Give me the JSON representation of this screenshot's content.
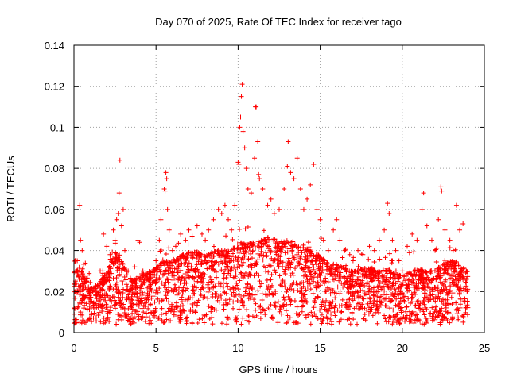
{
  "chart_data": {
    "type": "scatter",
    "title": "Day 070 of 2025, Rate Of TEC Index for receiver tago",
    "xlabel": "GPS time / hours",
    "ylabel": "ROTI / TECUs",
    "xlim": [
      0,
      25
    ],
    "ylim": [
      0,
      0.14
    ],
    "x_ticks": [
      "0",
      "5",
      "10",
      "15",
      "20",
      "25"
    ],
    "y_ticks": [
      "0",
      "0.02",
      "0.04",
      "0.06",
      "0.08",
      "0.1",
      "0.12",
      "0.14"
    ],
    "grid": true,
    "marker": "+",
    "color": "#ff0000",
    "series": [
      {
        "points": [
          [
            0.05,
            0.012
          ],
          [
            0.1,
            0.02
          ],
          [
            0.15,
            0.03
          ],
          [
            0.2,
            0.035
          ],
          [
            0.25,
            0.028
          ],
          [
            0.35,
            0.062
          ],
          [
            0.4,
            0.045
          ],
          [
            0.5,
            0.04
          ],
          [
            0.6,
            0.025
          ],
          [
            0.7,
            0.022
          ],
          [
            0.8,
            0.018
          ],
          [
            1.0,
            0.015
          ],
          [
            1.2,
            0.012
          ],
          [
            1.4,
            0.02
          ],
          [
            1.6,
            0.03
          ],
          [
            1.8,
            0.048
          ],
          [
            2.0,
            0.042
          ],
          [
            2.2,
            0.038
          ],
          [
            2.4,
            0.05
          ],
          [
            2.5,
            0.045
          ],
          [
            2.6,
            0.055
          ],
          [
            2.7,
            0.058
          ],
          [
            2.75,
            0.068
          ],
          [
            2.8,
            0.084
          ],
          [
            2.9,
            0.052
          ],
          [
            3.0,
            0.06
          ],
          [
            3.1,
            0.04
          ],
          [
            3.3,
            0.03
          ],
          [
            3.5,
            0.025
          ],
          [
            3.7,
            0.032
          ],
          [
            3.9,
            0.045
          ],
          [
            4.0,
            0.044
          ],
          [
            4.2,
            0.03
          ],
          [
            4.4,
            0.028
          ],
          [
            4.6,
            0.026
          ],
          [
            4.8,
            0.03
          ],
          [
            5.0,
            0.035
          ],
          [
            5.2,
            0.045
          ],
          [
            5.3,
            0.055
          ],
          [
            5.5,
            0.07
          ],
          [
            5.55,
            0.069
          ],
          [
            5.6,
            0.078
          ],
          [
            5.65,
            0.075
          ],
          [
            5.7,
            0.06
          ],
          [
            5.8,
            0.05
          ],
          [
            6.0,
            0.04
          ],
          [
            6.2,
            0.042
          ],
          [
            6.5,
            0.048
          ],
          [
            6.8,
            0.045
          ],
          [
            7.0,
            0.05
          ],
          [
            7.2,
            0.047
          ],
          [
            7.5,
            0.052
          ],
          [
            7.8,
            0.048
          ],
          [
            8.0,
            0.045
          ],
          [
            8.2,
            0.05
          ],
          [
            8.5,
            0.055
          ],
          [
            8.8,
            0.06
          ],
          [
            9.0,
            0.058
          ],
          [
            9.2,
            0.062
          ],
          [
            9.4,
            0.055
          ],
          [
            9.6,
            0.05
          ],
          [
            9.8,
            0.062
          ],
          [
            10.0,
            0.083
          ],
          [
            10.05,
            0.082
          ],
          [
            10.1,
            0.1
          ],
          [
            10.15,
            0.105
          ],
          [
            10.2,
            0.115
          ],
          [
            10.25,
            0.121
          ],
          [
            10.3,
            0.098
          ],
          [
            10.4,
            0.09
          ],
          [
            10.5,
            0.08
          ],
          [
            10.6,
            0.07
          ],
          [
            10.8,
            0.068
          ],
          [
            11.0,
            0.085
          ],
          [
            11.05,
            0.11
          ],
          [
            11.1,
            0.11
          ],
          [
            11.2,
            0.093
          ],
          [
            11.25,
            0.077
          ],
          [
            11.3,
            0.075
          ],
          [
            11.5,
            0.07
          ],
          [
            11.8,
            0.062
          ],
          [
            12.0,
            0.065
          ],
          [
            12.2,
            0.058
          ],
          [
            12.5,
            0.06
          ],
          [
            12.8,
            0.07
          ],
          [
            13.0,
            0.081
          ],
          [
            13.05,
            0.093
          ],
          [
            13.2,
            0.078
          ],
          [
            13.4,
            0.075
          ],
          [
            13.6,
            0.085
          ],
          [
            13.8,
            0.07
          ],
          [
            14.0,
            0.06
          ],
          [
            14.2,
            0.065
          ],
          [
            14.4,
            0.072
          ],
          [
            14.6,
            0.082
          ],
          [
            14.8,
            0.06
          ],
          [
            15.0,
            0.055
          ],
          [
            15.2,
            0.045
          ],
          [
            15.5,
            0.04
          ],
          [
            15.8,
            0.05
          ],
          [
            16.0,
            0.055
          ],
          [
            16.2,
            0.045
          ],
          [
            16.5,
            0.04
          ],
          [
            16.8,
            0.038
          ],
          [
            17.0,
            0.035
          ],
          [
            17.3,
            0.04
          ],
          [
            17.6,
            0.038
          ],
          [
            18.0,
            0.042
          ],
          [
            18.3,
            0.04
          ],
          [
            18.6,
            0.045
          ],
          [
            18.9,
            0.05
          ],
          [
            19.1,
            0.063
          ],
          [
            19.2,
            0.058
          ],
          [
            19.4,
            0.045
          ],
          [
            19.6,
            0.04
          ],
          [
            19.8,
            0.035
          ],
          [
            20.0,
            0.03
          ],
          [
            20.3,
            0.042
          ],
          [
            20.6,
            0.048
          ],
          [
            20.9,
            0.045
          ],
          [
            21.2,
            0.06
          ],
          [
            21.3,
            0.068
          ],
          [
            21.5,
            0.052
          ],
          [
            21.8,
            0.045
          ],
          [
            22.0,
            0.04
          ],
          [
            22.2,
            0.055
          ],
          [
            22.35,
            0.071
          ],
          [
            22.4,
            0.069
          ],
          [
            22.6,
            0.05
          ],
          [
            22.9,
            0.045
          ],
          [
            23.1,
            0.04
          ],
          [
            23.3,
            0.062
          ],
          [
            23.5,
            0.05
          ],
          [
            23.7,
            0.053
          ],
          [
            23.9,
            0.03
          ],
          [
            23.95,
            0.02
          ]
        ],
        "density_profile": {
          "x": [
            0,
            0.5,
            1,
            1.5,
            2,
            2.5,
            3,
            3.5,
            4,
            4.5,
            5,
            5.5,
            6,
            6.5,
            7,
            7.5,
            8,
            8.5,
            9,
            9.5,
            10,
            10.5,
            11,
            11.5,
            12,
            12.5,
            13,
            13.5,
            14,
            14.5,
            15,
            15.5,
            16,
            16.5,
            17,
            17.5,
            18,
            18.5,
            19,
            19.5,
            20,
            20.5,
            21,
            21.5,
            22,
            22.5,
            23,
            23.5,
            24
          ],
          "upper": [
            0.032,
            0.03,
            0.022,
            0.024,
            0.03,
            0.04,
            0.034,
            0.026,
            0.028,
            0.03,
            0.032,
            0.036,
            0.035,
            0.038,
            0.04,
            0.04,
            0.038,
            0.04,
            0.042,
            0.04,
            0.045,
            0.044,
            0.045,
            0.046,
            0.048,
            0.045,
            0.046,
            0.044,
            0.042,
            0.04,
            0.038,
            0.034,
            0.034,
            0.032,
            0.03,
            0.032,
            0.032,
            0.03,
            0.032,
            0.03,
            0.028,
            0.03,
            0.032,
            0.03,
            0.032,
            0.034,
            0.036,
            0.034,
            0.03
          ],
          "lower": 0.004,
          "count": 2600
        }
      }
    ]
  }
}
